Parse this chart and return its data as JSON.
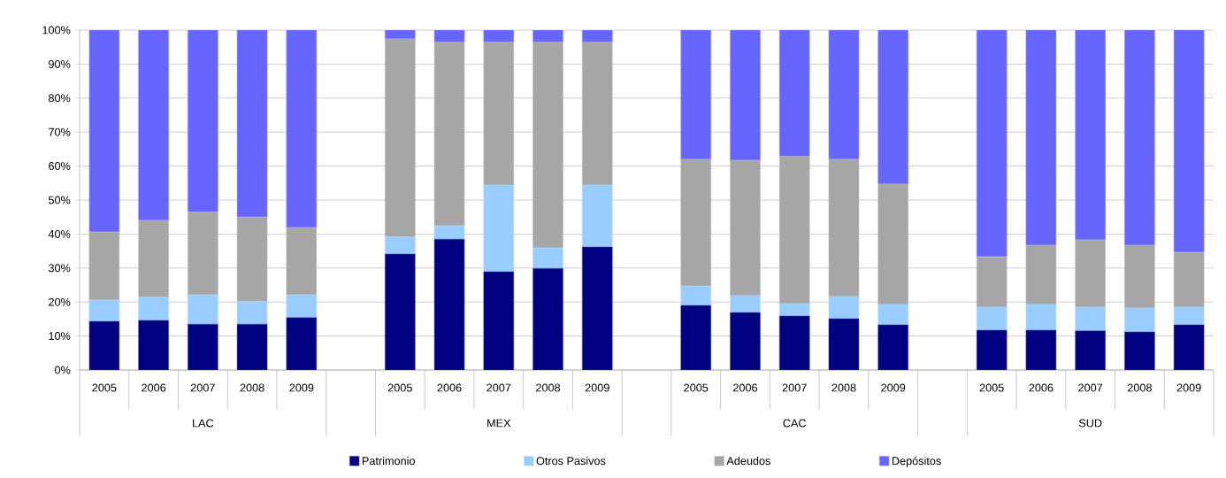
{
  "chart_data": {
    "type": "bar",
    "stacked": true,
    "grid": "y",
    "legend": "bottom",
    "categories": [
      "2005",
      "2006",
      "2007",
      "2008",
      "2009",
      null,
      "2005",
      "2006",
      "2007",
      "2008",
      "2009",
      null,
      "2005",
      "2006",
      "2007",
      "2008",
      "2009",
      null,
      "2005",
      "2006",
      "2007",
      "2008",
      "2009"
    ],
    "series": [
      {
        "name": "Patrimonio",
        "color": "#000080",
        "values": [
          14.3,
          14.6,
          13.5,
          13.5,
          15.4,
          null,
          34.1,
          38.5,
          28.9,
          29.9,
          36.2,
          null,
          19,
          16.9,
          15.9,
          15.1,
          13.3,
          null,
          11.7,
          11.7,
          11.5,
          11.2,
          13.3
        ]
      },
      {
        "name": "Otros Pasivos",
        "color": "#99ccff",
        "values": [
          6.3,
          6.8,
          8.6,
          6.6,
          6.7,
          null,
          5,
          3.9,
          25.5,
          6,
          18.2,
          null,
          5.7,
          5,
          3.6,
          6.5,
          6,
          null,
          6.8,
          7.6,
          7,
          7,
          5.2
        ]
      },
      {
        "name": "Adeudos",
        "color": "#a6a6a6",
        "values": [
          20,
          22.6,
          24.3,
          24.9,
          19.8,
          null,
          58.3,
          54,
          42,
          60.5,
          42,
          null,
          37.3,
          39.8,
          43.3,
          40.4,
          35.4,
          null,
          14.8,
          17.4,
          19.8,
          18.5,
          16.1
        ]
      },
      {
        "name": "Depósitos",
        "color": "#6666ff",
        "values": [
          59.4,
          56,
          53.6,
          55,
          58.1,
          null,
          2.6,
          3.6,
          3.6,
          3.6,
          3.6,
          null,
          38,
          38.3,
          37.2,
          38,
          45.3,
          null,
          66.7,
          63.3,
          61.7,
          63.3,
          65.4
        ]
      }
    ],
    "ylim": [
      0,
      100
    ],
    "yticks": [
      {
        "value": 0,
        "label": "0%"
      },
      {
        "value": 10,
        "label": "10%"
      },
      {
        "value": 20,
        "label": "20%"
      },
      {
        "value": 30,
        "label": "30%"
      },
      {
        "value": 40,
        "label": "40%"
      },
      {
        "value": 50,
        "label": "50%"
      },
      {
        "value": 60,
        "label": "60%"
      },
      {
        "value": 70,
        "label": "70%"
      },
      {
        "value": 80,
        "label": "80%"
      },
      {
        "value": 90,
        "label": "90%"
      },
      {
        "value": 100,
        "label": "100%"
      }
    ],
    "annotations": [
      "LAC",
      "MEX",
      "CAC",
      "SUD"
    ]
  }
}
